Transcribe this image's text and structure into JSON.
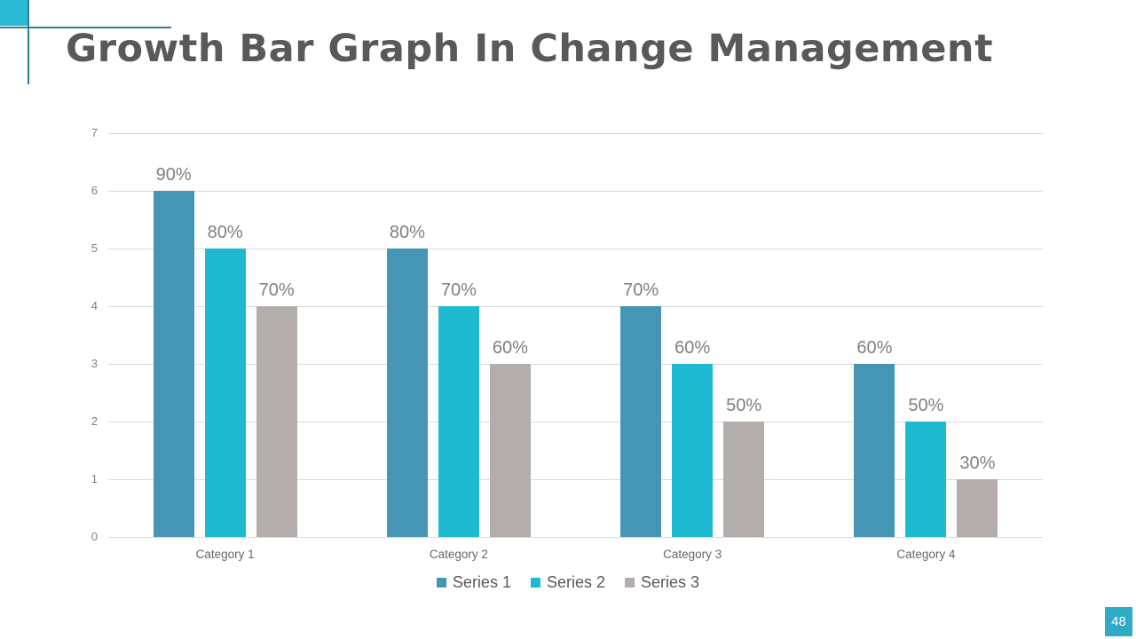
{
  "slide": {
    "title": "Growth Bar Graph In Change Management",
    "page_number": "48",
    "accent_color": "#29b9d3",
    "decor_line_color": "#2e7f99",
    "badge_color": "#2fabc5",
    "title_color": "#595959"
  },
  "chart_data": {
    "type": "bar",
    "title": "",
    "xlabel": "",
    "ylabel": "",
    "categories": [
      "Category 1",
      "Category 2",
      "Category 3",
      "Category 4"
    ],
    "series": [
      {
        "name": "Series 1",
        "color": "#4596b5",
        "values": [
          6,
          5,
          4,
          3
        ],
        "data_labels": [
          "90%",
          "80%",
          "70%",
          "60%"
        ]
      },
      {
        "name": "Series 2",
        "color": "#20b9d2",
        "values": [
          5,
          4,
          3,
          2
        ],
        "data_labels": [
          "80%",
          "70%",
          "60%",
          "50%"
        ]
      },
      {
        "name": "Series 3",
        "color": "#b3aeab",
        "values": [
          4,
          3,
          2,
          1
        ],
        "data_labels": [
          "70%",
          "60%",
          "50%",
          "30%"
        ]
      }
    ],
    "ylim": [
      0,
      7
    ],
    "yticks": [
      0,
      1,
      2,
      3,
      4,
      5,
      6,
      7
    ],
    "grid": true,
    "gridline_color": "#d9d9d9",
    "tick_label_color": "#7f7f7f",
    "data_label_color": "#7f7f7f",
    "category_label_color": "#666666",
    "legend": {
      "position": "bottom",
      "text_color": "#595959"
    }
  }
}
